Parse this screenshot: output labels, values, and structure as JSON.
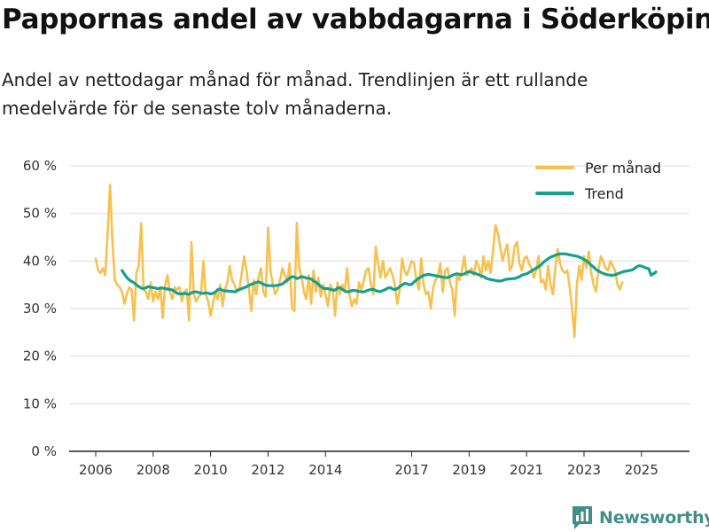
{
  "title": "Pappornas andel av vabbdagarna i Söderköping",
  "subtitle": "Andel av nettodagar månad för månad. Trendlinjen är ett rullande medelvärde för de senaste tolv månaderna.",
  "brand": {
    "name": "Newsworthy",
    "icon": "newsworthy-logo-icon"
  },
  "colors": {
    "monthly": "#f7c14f",
    "trend": "#16a08f",
    "grid": "#dddddd",
    "axis": "#222222",
    "brand": "#3f8f85"
  },
  "chart_data": {
    "type": "line",
    "title": "Pappornas andel av vabbdagarna i Söderköping",
    "xlabel": "",
    "ylabel": "",
    "ylim": [
      0,
      60
    ],
    "y_ticks": [
      0,
      10,
      20,
      30,
      40,
      50,
      60
    ],
    "y_tick_labels": [
      "0 %",
      "10 %",
      "20 %",
      "30 %",
      "40 %",
      "50 %",
      "60 %"
    ],
    "x_range": [
      2006.0,
      2025.5
    ],
    "x_ticks": [
      2006,
      2008,
      2010,
      2012,
      2014,
      2017,
      2019,
      2021,
      2023,
      2025
    ],
    "x_tick_labels": [
      "2006",
      "2008",
      "2010",
      "2012",
      "2014",
      "2017",
      "2019",
      "2021",
      "2023",
      "2025"
    ],
    "legend": {
      "position": "top-right",
      "entries": [
        "Per månad",
        "Trend"
      ]
    },
    "series": [
      {
        "name": "Per månad",
        "color": "#f7c14f",
        "x_start": 2006.0,
        "step": 0.0833333,
        "values": [
          40.5,
          38,
          37.5,
          38.5,
          37,
          46,
          56,
          44,
          36,
          35,
          34.5,
          33.5,
          31,
          33,
          34.5,
          34,
          27.5,
          37.5,
          39,
          48,
          34,
          33.5,
          32,
          35.5,
          31.5,
          33.5,
          32,
          34.5,
          28,
          35,
          37,
          33.5,
          32,
          34.5,
          34,
          34.5,
          31.5,
          33.5,
          34,
          27.5,
          44,
          33,
          31.5,
          32.5,
          33,
          40,
          33,
          31.5,
          28.5,
          31,
          33.5,
          32,
          35,
          30.5,
          34,
          35.5,
          39,
          36,
          35,
          33.5,
          34,
          37.5,
          41,
          38,
          34,
          29.5,
          36,
          33,
          36.5,
          38.5,
          33.5,
          32.5,
          47,
          38,
          35,
          33,
          34,
          36,
          38.5,
          37,
          35.5,
          39.5,
          30,
          29.5,
          48,
          38.5,
          36.5,
          33.5,
          32,
          37,
          31,
          38,
          33.5,
          36.5,
          32.5,
          35,
          33,
          30.5,
          35,
          34,
          28.5,
          35.5,
          33,
          35,
          33.5,
          38.5,
          33,
          30.5,
          32,
          31,
          35.5,
          34,
          36,
          38,
          38.5,
          35,
          33,
          43,
          39.5,
          36.5,
          40,
          36.5,
          37.5,
          38.5,
          37,
          35,
          31,
          34,
          40.5,
          38,
          37,
          38.5,
          40,
          39.5,
          36,
          34,
          40.5,
          35,
          33,
          33.5,
          30,
          34.5,
          36,
          37,
          39.5,
          33.5,
          38,
          38.5,
          35.5,
          34,
          28.5,
          37.5,
          36,
          38,
          41,
          37,
          37.5,
          38.5,
          37,
          40,
          39,
          36.5,
          41,
          38,
          40,
          37.5,
          42,
          47.5,
          46,
          43,
          40,
          42,
          43.5,
          38,
          39,
          43,
          44,
          39.5,
          38,
          40.5,
          41,
          39.5,
          38.5,
          36.5,
          38,
          41,
          35.5,
          36,
          34,
          39,
          35,
          33,
          38.5,
          42.5,
          39.5,
          38,
          37.5,
          38,
          34.5,
          30,
          24,
          35,
          39,
          36,
          41,
          38.5,
          42,
          37.5,
          35,
          33.5,
          38,
          41,
          40,
          38.5,
          38,
          40,
          39,
          38,
          35,
          34,
          35.5
        ]
      },
      {
        "name": "Trend",
        "color": "#16a08f",
        "x_start": 2006.92,
        "step": 0.0833333,
        "values": [
          38,
          37.2,
          36.5,
          36,
          35.7,
          35.4,
          35,
          34.6,
          34.3,
          34.2,
          34.4,
          34.6,
          34.5,
          34.4,
          34.3,
          34.2,
          34.3,
          34.3,
          34.2,
          34.1,
          34,
          33.9,
          33.6,
          33.2,
          33.1,
          33.1,
          33.2,
          33.1,
          33,
          33.3,
          33.5,
          33.5,
          33.4,
          33.2,
          33.2,
          33.3,
          33.2,
          33.1,
          33.2,
          33.5,
          34,
          34.1,
          33.8,
          33.7,
          33.7,
          33.6,
          33.6,
          33.5,
          33.8,
          34,
          34.2,
          34.4,
          34.6,
          34.9,
          35.1,
          35.3,
          35.5,
          35.6,
          35.4,
          35.1,
          34.9,
          34.8,
          34.8,
          34.8,
          34.8,
          34.9,
          35,
          35.2,
          35.6,
          36,
          36.4,
          36.7,
          36.6,
          36.3,
          36.5,
          36.7,
          36.6,
          36.4,
          36.4,
          36.2,
          35.8,
          35.5,
          35.1,
          34.6,
          34.3,
          34.2,
          34.2,
          34,
          33.9,
          33.9,
          34.3,
          34.4,
          34,
          33.7,
          33.5,
          33.6,
          33.8,
          33.8,
          33.7,
          33.6,
          33.5,
          33.5,
          33.7,
          33.9,
          34,
          34,
          33.8,
          33.6,
          33.6,
          33.8,
          34,
          34.3,
          34.4,
          34.1,
          34,
          34.2,
          34.6,
          35,
          35.3,
          35.2,
          35,
          35.1,
          35.6,
          36,
          36.4,
          36.7,
          37,
          37.1,
          37.2,
          37.1,
          37,
          36.9,
          36.8,
          36.7,
          36.6,
          36.5,
          36.5,
          36.7,
          37,
          37.2,
          37.3,
          37.2,
          37.1,
          37.3,
          37.6,
          37.8,
          37.6,
          37.4,
          37.3,
          37.1,
          36.9,
          36.7,
          36.4,
          36.2,
          36.1,
          36,
          35.9,
          35.8,
          35.8,
          35.9,
          36.1,
          36.2,
          36.2,
          36.3,
          36.3,
          36.5,
          36.7,
          37,
          37.2,
          37.3,
          37.6,
          37.9,
          38.2,
          38.5,
          38.8,
          39.2,
          39.7,
          40.1,
          40.5,
          40.8,
          41,
          41.2,
          41.4,
          41.5,
          41.5,
          41.5,
          41.4,
          41.3,
          41.2,
          41.1,
          41,
          40.8,
          40.6,
          40.3,
          40,
          39.6,
          39.1,
          38.7,
          38.2,
          37.9,
          37.6,
          37.4,
          37.2,
          37.1,
          37,
          37,
          37.1,
          37.3,
          37.5,
          37.7,
          37.8,
          37.9,
          38,
          38.1,
          38.4,
          38.8,
          39,
          38.9,
          38.7,
          38.5,
          38.4,
          37,
          37.3,
          37.7
        ]
      }
    ]
  }
}
